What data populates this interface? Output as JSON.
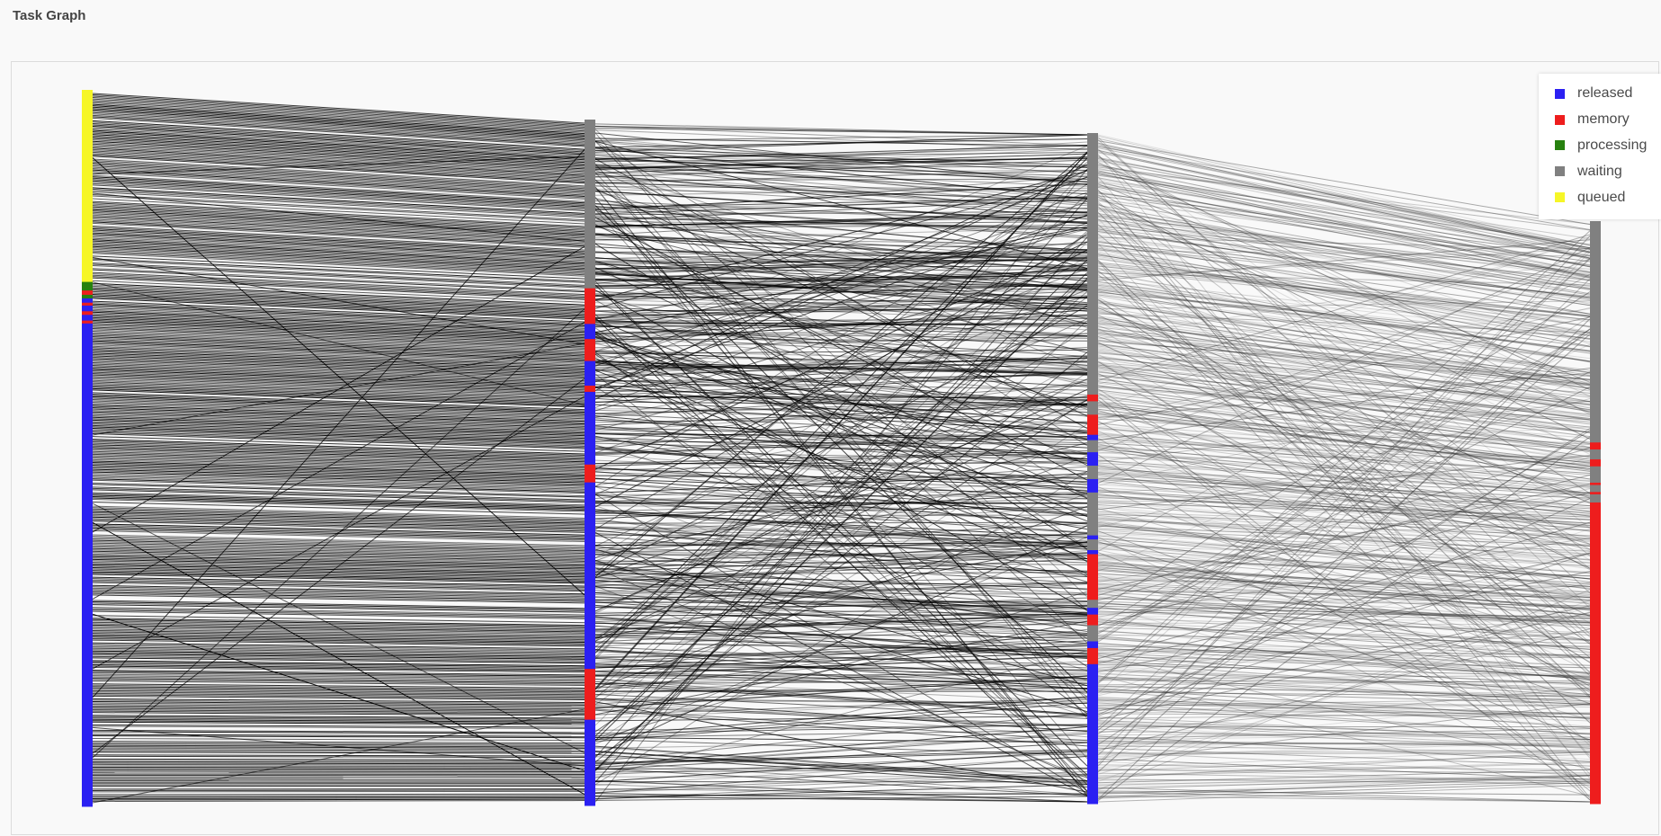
{
  "title": "Task Graph",
  "legend": [
    {
      "key": "released",
      "label": "released",
      "color": "#2b20f2"
    },
    {
      "key": "memory",
      "label": "memory",
      "color": "#ee1d1d"
    },
    {
      "key": "processing",
      "label": "processing",
      "color": "#27810f"
    },
    {
      "key": "waiting",
      "label": "waiting",
      "color": "#808080"
    },
    {
      "key": "queued",
      "label": "queued",
      "color": "#f6f627"
    }
  ],
  "columns": [
    {
      "name": "column-1",
      "segments": [
        {
          "state": "queued",
          "share": 0.268
        },
        {
          "state": "processing",
          "share": 0.012
        },
        {
          "state": "memory",
          "share": 0.006
        },
        {
          "state": "processing",
          "share": 0.005
        },
        {
          "state": "released",
          "share": 0.006
        },
        {
          "state": "memory",
          "share": 0.004
        },
        {
          "state": "released",
          "share": 0.008
        },
        {
          "state": "memory",
          "share": 0.005
        },
        {
          "state": "released",
          "share": 0.008
        },
        {
          "state": "memory",
          "share": 0.004
        },
        {
          "state": "released",
          "share": 0.674
        }
      ]
    },
    {
      "name": "column-2",
      "segments": [
        {
          "state": "waiting",
          "share": 0.246
        },
        {
          "state": "memory",
          "share": 0.052
        },
        {
          "state": "released",
          "share": 0.022
        },
        {
          "state": "memory",
          "share": 0.032
        },
        {
          "state": "released",
          "share": 0.036
        },
        {
          "state": "memory",
          "share": 0.009
        },
        {
          "state": "released",
          "share": 0.106
        },
        {
          "state": "memory",
          "share": 0.026
        },
        {
          "state": "released",
          "share": 0.272
        },
        {
          "state": "memory",
          "share": 0.074
        },
        {
          "state": "released",
          "share": 0.125
        }
      ]
    },
    {
      "name": "column-3",
      "segments": [
        {
          "state": "waiting",
          "share": 0.39
        },
        {
          "state": "memory",
          "share": 0.01
        },
        {
          "state": "waiting",
          "share": 0.02
        },
        {
          "state": "memory",
          "share": 0.03
        },
        {
          "state": "released",
          "share": 0.008
        },
        {
          "state": "waiting",
          "share": 0.018
        },
        {
          "state": "released",
          "share": 0.02
        },
        {
          "state": "waiting",
          "share": 0.02
        },
        {
          "state": "released",
          "share": 0.02
        },
        {
          "state": "waiting",
          "share": 0.064
        },
        {
          "state": "released",
          "share": 0.006
        },
        {
          "state": "waiting",
          "share": 0.016
        },
        {
          "state": "released",
          "share": 0.006
        },
        {
          "state": "memory",
          "share": 0.068
        },
        {
          "state": "waiting",
          "share": 0.012
        },
        {
          "state": "released",
          "share": 0.01
        },
        {
          "state": "memory",
          "share": 0.016
        },
        {
          "state": "waiting",
          "share": 0.024
        },
        {
          "state": "released",
          "share": 0.01
        },
        {
          "state": "memory",
          "share": 0.024
        },
        {
          "state": "released",
          "share": 0.208
        }
      ]
    },
    {
      "name": "column-4",
      "segments": [
        {
          "state": "waiting",
          "share": 0.38
        },
        {
          "state": "memory",
          "share": 0.012
        },
        {
          "state": "waiting",
          "share": 0.017
        },
        {
          "state": "memory",
          "share": 0.012
        },
        {
          "state": "waiting",
          "share": 0.028
        },
        {
          "state": "memory",
          "share": 0.004
        },
        {
          "state": "waiting",
          "share": 0.012
        },
        {
          "state": "memory",
          "share": 0.004
        },
        {
          "state": "waiting",
          "share": 0.014
        },
        {
          "state": "memory",
          "share": 0.517
        }
      ]
    }
  ]
}
